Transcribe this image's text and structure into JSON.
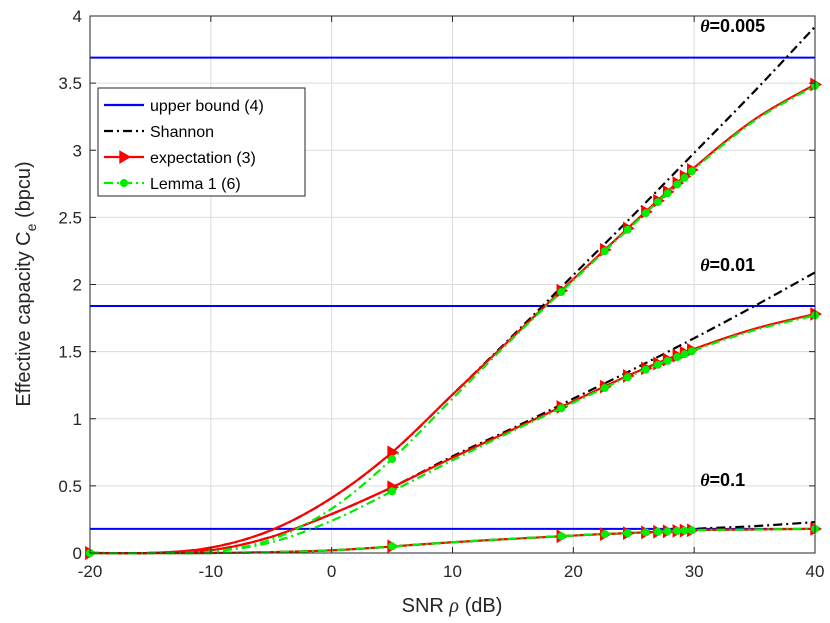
{
  "chart_data": {
    "type": "line",
    "xlabel_main": "SNR ",
    "xlabel_symbol": "ρ",
    "xlabel_unit": " (dB)",
    "ylabel_main": "Effective capacity C",
    "ylabel_sub": "e",
    "ylabel_unit": "  (bpcu)",
    "xlim": [
      -20,
      40
    ],
    "ylim": [
      0,
      4
    ],
    "xticks": [
      -20,
      -10,
      0,
      10,
      20,
      30,
      40
    ],
    "xtick_labels": [
      "-20",
      "-10",
      "0",
      "10",
      "20",
      "30",
      "40"
    ],
    "yticks": [
      0,
      0.5,
      1,
      1.5,
      2,
      2.5,
      3,
      3.5,
      4
    ],
    "ytick_labels": [
      "0",
      "0.5",
      "1",
      "1.5",
      "2",
      "2.5",
      "3",
      "3.5",
      "4"
    ],
    "grid": true,
    "legend_position": "top-left",
    "annotations": [
      {
        "symbol": "θ",
        "value": "=0.005",
        "x": 30.5,
        "y": 3.88
      },
      {
        "symbol": "θ",
        "value": "=0.01",
        "x": 30.5,
        "y": 2.1
      },
      {
        "symbol": "θ",
        "value": "=0.1",
        "x": 30.5,
        "y": 0.5
      }
    ],
    "series": [
      {
        "name": "upper bound (4)",
        "color": "#0000ff",
        "style": "solid",
        "group": "θ=0.005",
        "x": [
          -20,
          40
        ],
        "y": [
          3.69,
          3.69
        ]
      },
      {
        "name": "upper bound (4)",
        "color": "#0000ff",
        "style": "solid",
        "group": "θ=0.01",
        "x": [
          -20,
          40
        ],
        "y": [
          1.84,
          1.84
        ]
      },
      {
        "name": "upper bound (4)",
        "color": "#0000ff",
        "style": "solid",
        "group": "θ=0.1",
        "x": [
          -20,
          40
        ],
        "y": [
          0.18,
          0.18
        ]
      },
      {
        "name": "Shannon",
        "color": "#000000",
        "style": "dashdot",
        "group": "θ=0.005",
        "x": [
          -20,
          -15,
          -10,
          -5,
          0,
          5,
          10,
          15,
          20,
          25,
          30,
          35,
          40
        ],
        "y": [
          0.0,
          0.0,
          0.04,
          0.17,
          0.41,
          0.75,
          1.18,
          1.62,
          2.07,
          2.52,
          2.98,
          3.44,
          3.92
        ]
      },
      {
        "name": "Shannon",
        "color": "#000000",
        "style": "dashdot",
        "group": "θ=0.01",
        "x": [
          -20,
          -15,
          -10,
          -5,
          0,
          5,
          10,
          15,
          20,
          25,
          30,
          35,
          40
        ],
        "y": [
          0.0,
          0.0,
          0.02,
          0.12,
          0.29,
          0.49,
          0.72,
          0.93,
          1.15,
          1.37,
          1.6,
          1.84,
          2.09
        ]
      },
      {
        "name": "Shannon",
        "color": "#000000",
        "style": "dashdot",
        "group": "θ=0.1",
        "x": [
          -20,
          -10,
          0,
          10,
          20,
          25,
          30,
          35,
          40
        ],
        "y": [
          0.0,
          0.0,
          0.02,
          0.08,
          0.13,
          0.15,
          0.18,
          0.2,
          0.23
        ]
      },
      {
        "name": "expectation (3)",
        "color": "#ff0000",
        "style": "solid",
        "group": "θ=0.005",
        "x": [
          -20,
          -15,
          -10,
          -5,
          0,
          5,
          10,
          15,
          20,
          25,
          30,
          35,
          40
        ],
        "y": [
          0.0,
          0.0,
          0.04,
          0.17,
          0.41,
          0.75,
          1.18,
          1.61,
          2.04,
          2.46,
          2.87,
          3.23,
          3.49
        ]
      },
      {
        "name": "expectation (3)",
        "color": "#ff0000",
        "style": "solid",
        "group": "θ=0.01",
        "x": [
          -20,
          -15,
          -10,
          -5,
          0,
          5,
          10,
          15,
          20,
          25,
          30,
          35,
          40
        ],
        "y": [
          0.0,
          0.0,
          0.02,
          0.12,
          0.29,
          0.49,
          0.71,
          0.92,
          1.13,
          1.34,
          1.52,
          1.67,
          1.78
        ]
      },
      {
        "name": "expectation (3)",
        "color": "#ff0000",
        "style": "solid",
        "group": "θ=0.1",
        "x": [
          -20,
          -10,
          0,
          10,
          20,
          25,
          30,
          35,
          40
        ],
        "y": [
          0.0,
          0.0,
          0.02,
          0.08,
          0.13,
          0.15,
          0.17,
          0.175,
          0.18
        ]
      },
      {
        "name": "Lemma 1 (6)",
        "color": "#00ee00",
        "style": "dashdot",
        "group": "θ=0.005",
        "x": [
          -20,
          -15,
          -10,
          -5,
          0,
          5,
          10,
          15,
          20,
          25,
          30,
          35,
          40
        ],
        "y": [
          0.0,
          0.0,
          0.01,
          0.1,
          0.33,
          0.7,
          1.15,
          1.6,
          2.03,
          2.45,
          2.86,
          3.22,
          3.48
        ]
      },
      {
        "name": "Lemma 1 (6)",
        "color": "#00ee00",
        "style": "dashdot",
        "group": "θ=0.01",
        "x": [
          -20,
          -15,
          -10,
          -5,
          0,
          5,
          10,
          15,
          20,
          25,
          30,
          35,
          40
        ],
        "y": [
          0.0,
          0.0,
          0.01,
          0.08,
          0.24,
          0.46,
          0.69,
          0.91,
          1.12,
          1.33,
          1.51,
          1.66,
          1.77
        ]
      },
      {
        "name": "Lemma 1 (6)",
        "color": "#00ee00",
        "style": "dashdot",
        "group": "θ=0.1",
        "x": [
          -20,
          -10,
          0,
          10,
          20,
          25,
          30,
          35,
          40
        ],
        "y": [
          0.0,
          0.0,
          0.02,
          0.08,
          0.13,
          0.15,
          0.17,
          0.175,
          0.18
        ]
      }
    ],
    "marker_x": [
      -20,
      5,
      19,
      22.6,
      24.5,
      26,
      27,
      27.8,
      28.6,
      29.2,
      29.8,
      40
    ]
  },
  "legend": {
    "items": [
      {
        "label": "upper bound (4)",
        "color": "#0000ff",
        "style": "solid",
        "marker": "none"
      },
      {
        "label": "Shannon",
        "color": "#000000",
        "style": "dashdot",
        "marker": "none"
      },
      {
        "label": "expectation (3)",
        "color": "#ff0000",
        "style": "solid",
        "marker": "triangle-right"
      },
      {
        "label": "Lemma 1 (6)",
        "color": "#00ee00",
        "style": "dashdot",
        "marker": "circle"
      }
    ]
  }
}
